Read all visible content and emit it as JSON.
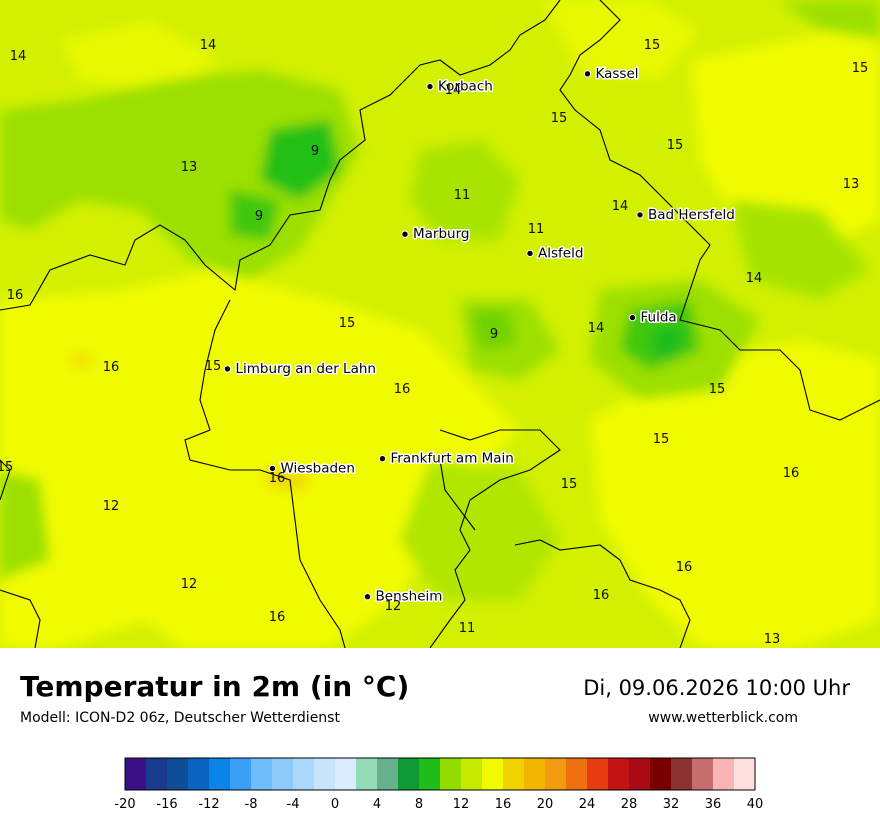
{
  "map": {
    "cities": [
      {
        "name": "Kassel",
        "lon": 9.5,
        "lat": 51.31
      },
      {
        "name": "Korbach",
        "lon": 8.87,
        "lat": 51.27
      },
      {
        "name": "Bad Hersfeld",
        "lon": 9.71,
        "lat": 50.87
      },
      {
        "name": "Marburg",
        "lon": 8.77,
        "lat": 50.81
      },
      {
        "name": "Alsfeld",
        "lon": 9.27,
        "lat": 50.75
      },
      {
        "name": "Fulda",
        "lon": 9.68,
        "lat": 50.55
      },
      {
        "name": "Limburg an der Lahn",
        "lon": 8.06,
        "lat": 50.39
      },
      {
        "name": "Frankfurt am Main",
        "lon": 8.68,
        "lat": 50.11
      },
      {
        "name": "Wiesbaden",
        "lon": 8.24,
        "lat": 50.08
      },
      {
        "name": "Bensheim",
        "lon": 8.62,
        "lat": 49.68
      }
    ],
    "values": [
      {
        "v": "14"
      },
      {
        "v": "14"
      },
      {
        "v": "14"
      },
      {
        "v": "15"
      },
      {
        "v": "15"
      },
      {
        "v": "15"
      },
      {
        "v": "13"
      },
      {
        "v": "9"
      },
      {
        "v": "9"
      },
      {
        "v": "11"
      },
      {
        "v": "11"
      },
      {
        "v": "14"
      },
      {
        "v": "15"
      },
      {
        "v": "13"
      },
      {
        "v": "16"
      },
      {
        "v": "15"
      },
      {
        "v": "9"
      },
      {
        "v": "14"
      },
      {
        "v": "14"
      },
      {
        "v": "16"
      },
      {
        "v": "15"
      },
      {
        "v": "16"
      },
      {
        "v": "15"
      },
      {
        "v": "15"
      },
      {
        "v": "15"
      },
      {
        "v": "16"
      },
      {
        "v": "15"
      },
      {
        "v": "12"
      },
      {
        "v": "16"
      },
      {
        "v": "12"
      },
      {
        "v": "16"
      },
      {
        "v": "16"
      },
      {
        "v": "16"
      },
      {
        "v": "12"
      },
      {
        "v": "11"
      },
      {
        "v": "13"
      }
    ]
  },
  "header": {
    "title": "Temperatur in 2m (in °C)",
    "model": "Modell: ICON-D2 06z, Deutscher Wetterdienst",
    "datetime": "Di, 09.06.2026 10:00 Uhr",
    "website": "www.wetterblick.com"
  },
  "legend": {
    "ticks": [
      "-20",
      "-16",
      "-12",
      "-8",
      "-4",
      "0",
      "4",
      "8",
      "12",
      "16",
      "20",
      "24",
      "28",
      "32",
      "36",
      "40"
    ],
    "colors": [
      "#3b0f86",
      "#1a3a8c",
      "#0f4d96",
      "#0a63c0",
      "#0a84e6",
      "#3aa0f5",
      "#6fbdfa",
      "#8ec9fb",
      "#abd6fc",
      "#c8e4fd",
      "#dcecfe",
      "#94dcb9",
      "#66b08b",
      "#0e9a32",
      "#1ebd1a",
      "#93dc00",
      "#c8ea00",
      "#f0fb00",
      "#f0d200",
      "#f2b400",
      "#f29a10",
      "#f07010",
      "#e63c10",
      "#c31414",
      "#aa0a14",
      "#7a0000",
      "#8c3232",
      "#c46e6e",
      "#f9b4b4",
      "#ffe0e0"
    ]
  }
}
